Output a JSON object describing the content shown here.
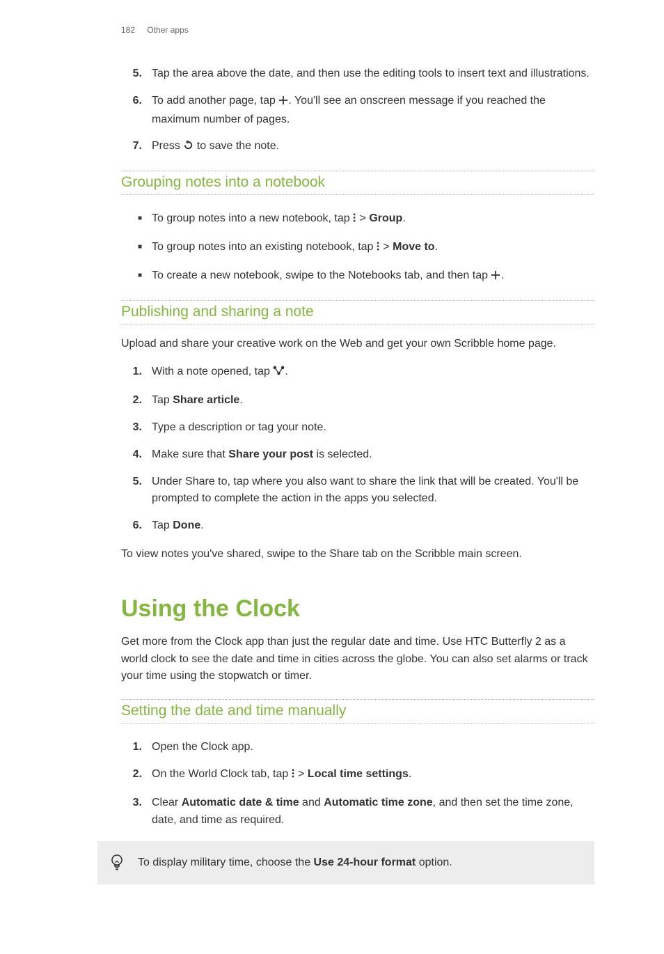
{
  "colors": {
    "accent": "#84b640",
    "text": "#333333",
    "muted": "#666666",
    "tip_bg": "#ededed",
    "border": "#bbbbbb",
    "background": "#ffffff"
  },
  "typography": {
    "body_fontsize": 16,
    "subheading_fontsize": 21,
    "heading_fontsize": 34,
    "header_fontsize": 12
  },
  "header": {
    "page_number": "182",
    "section": "Other apps"
  },
  "steps_a": [
    {
      "n": "5.",
      "before": "Tap the area above the date, and then use the editing tools to insert text and illustrations."
    },
    {
      "n": "6.",
      "before": "To add another page, tap ",
      "icon": "plus",
      "after": ". You'll see an onscreen message if you reached the maximum number of pages."
    },
    {
      "n": "7.",
      "before": "Press ",
      "icon": "back",
      "after": " to save the note."
    }
  ],
  "sub1": "Grouping notes into a notebook",
  "bullets_b": [
    {
      "before": "To group notes into a new notebook, tap ",
      "icon": "menu-dots",
      "mid": " > ",
      "bold": "Group",
      "after": "."
    },
    {
      "before": "To group notes into an existing notebook, tap ",
      "icon": "menu-dots",
      "mid": " > ",
      "bold": "Move to",
      "after": "."
    },
    {
      "before": "To create a new notebook, swipe to the Notebooks tab, and then tap ",
      "icon": "plus",
      "after": "."
    }
  ],
  "sub2": "Publishing and sharing a note",
  "para_c": "Upload and share your creative work on the Web and get your own Scribble home page.",
  "steps_d": [
    {
      "n": "1.",
      "before": "With a note opened, tap ",
      "icon": "share",
      "after": "."
    },
    {
      "n": "2.",
      "before": "Tap ",
      "bold": "Share article",
      "after": "."
    },
    {
      "n": "3.",
      "before": "Type a description or tag your note."
    },
    {
      "n": "4.",
      "before": "Make sure that ",
      "bold": "Share your post",
      "after": " is selected."
    },
    {
      "n": "5.",
      "before": "Under Share to, tap where you also want to share the link that will be created. You'll be prompted to complete the action in the apps you selected."
    },
    {
      "n": "6.",
      "before": "Tap ",
      "bold": "Done",
      "after": "."
    }
  ],
  "para_e": "To view notes you've shared, swipe to the Share tab on the Scribble main screen.",
  "heading_f": "Using the Clock",
  "para_g": "Get more from the Clock app than just the regular date and time. Use HTC Butterfly 2 as a world clock to see the date and time in cities across the globe. You can also set alarms or track your time using the stopwatch or timer.",
  "sub3": "Setting the date and time manually",
  "steps_h": [
    {
      "n": "1.",
      "before": "Open the Clock app."
    },
    {
      "n": "2.",
      "before": "On the World Clock tab, tap ",
      "icon": "menu-dots",
      "mid": " > ",
      "bold": "Local time settings",
      "after": "."
    },
    {
      "n": "3.",
      "before": "Clear ",
      "bold": "Automatic date & time",
      "mid": " and ",
      "bold2": "Automatic time zone",
      "after": ", and then set the time zone, date, and time as required."
    }
  ],
  "tip": {
    "before": "To display military time, choose the ",
    "bold": "Use 24-hour format",
    "after": " option."
  }
}
